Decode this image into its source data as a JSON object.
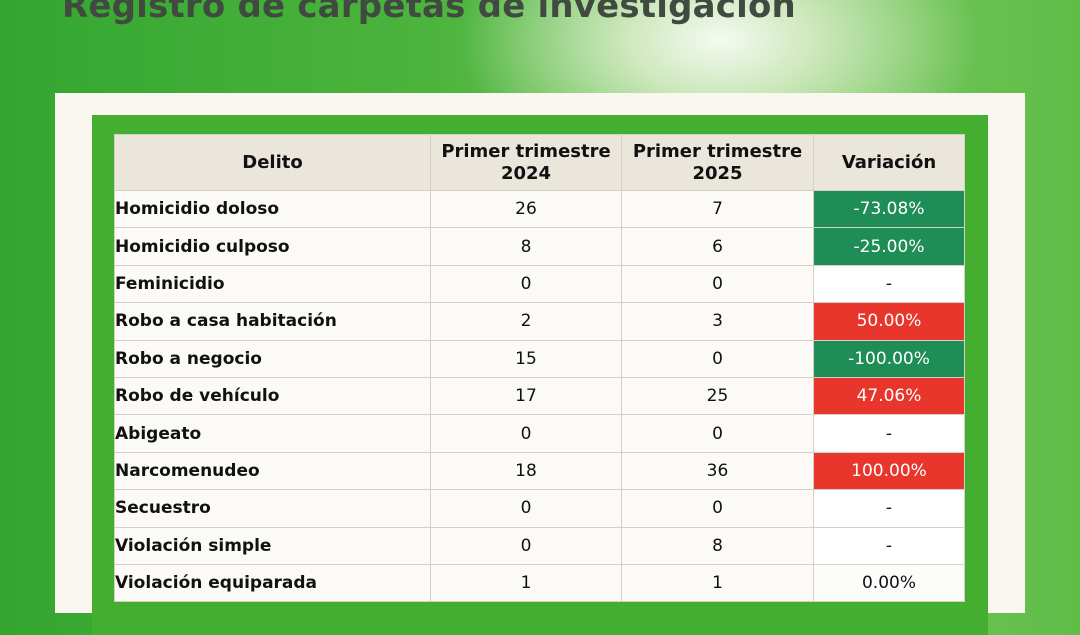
{
  "title": "Registro de carpetas de investigación",
  "table": {
    "headers": {
      "delito": "Delito",
      "q2024": "Primer trimestre 2024",
      "q2025": "Primer trimestre 2025",
      "variacion": "Variación"
    },
    "rows": [
      {
        "delito": "Homicidio doloso",
        "q2024": "26",
        "q2025": "7",
        "variacion": "-73.08%",
        "trend": "neg"
      },
      {
        "delito": "Homicidio culposo",
        "q2024": "8",
        "q2025": "6",
        "variacion": "-25.00%",
        "trend": "neg"
      },
      {
        "delito": "Feminicidio",
        "q2024": "0",
        "q2025": "0",
        "variacion": "-",
        "trend": "none"
      },
      {
        "delito": "Robo a casa habitación",
        "q2024": "2",
        "q2025": "3",
        "variacion": "50.00%",
        "trend": "pos"
      },
      {
        "delito": "Robo a negocio",
        "q2024": "15",
        "q2025": "0",
        "variacion": "-100.00%",
        "trend": "neg"
      },
      {
        "delito": "Robo de vehículo",
        "q2024": "17",
        "q2025": "25",
        "variacion": "47.06%",
        "trend": "pos"
      },
      {
        "delito": "Abigeato",
        "q2024": "0",
        "q2025": "0",
        "variacion": "-",
        "trend": "none"
      },
      {
        "delito": "Narcomenudeo",
        "q2024": "18",
        "q2025": "36",
        "variacion": "100.00%",
        "trend": "pos"
      },
      {
        "delito": "Secuestro",
        "q2024": "0",
        "q2025": "0",
        "variacion": "-",
        "trend": "none"
      },
      {
        "delito": "Violación simple",
        "q2024": "0",
        "q2025": "8",
        "variacion": "-",
        "trend": "none"
      },
      {
        "delito": "Violación equiparada",
        "q2024": "1",
        "q2025": "1",
        "variacion": "0.00%",
        "trend": "zero"
      }
    ]
  },
  "colors": {
    "decrease": "#1f8d56",
    "increase": "#e8362c",
    "frame_green": "#43ae2f"
  }
}
